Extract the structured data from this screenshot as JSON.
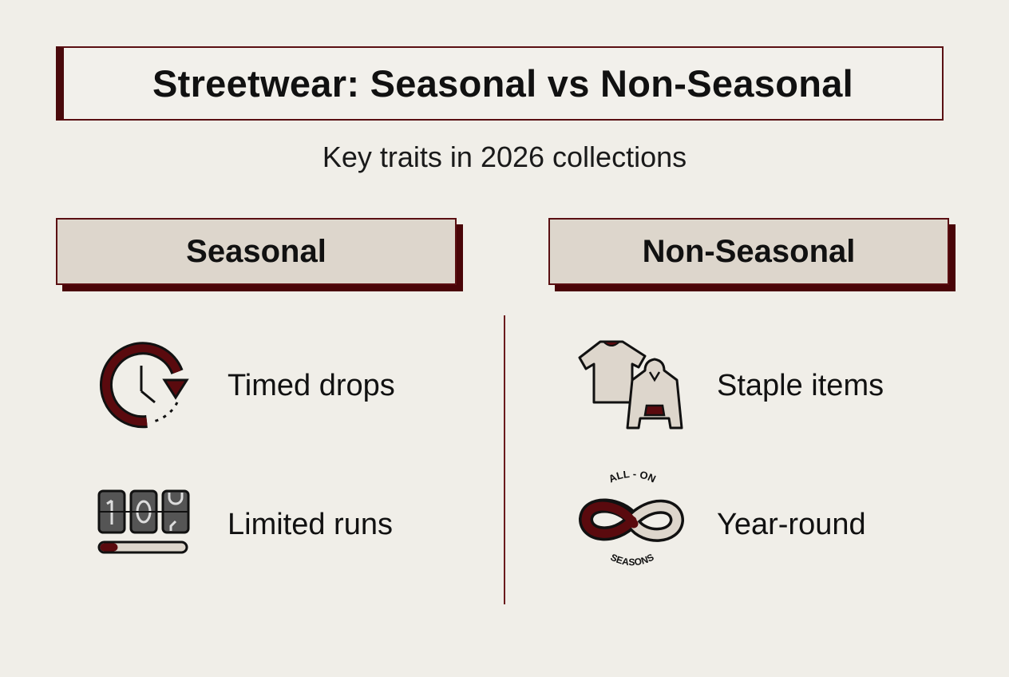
{
  "title": "Streetwear: Seasonal vs Non-Seasonal",
  "subtitle": "Key traits in 2026 collections",
  "colors": {
    "accent": "#5a0a0e",
    "background": "#f0eee8",
    "header_fill": "#ddd6cc"
  },
  "columns": [
    {
      "heading": "Seasonal",
      "items": [
        {
          "label": "Timed drops",
          "icon": "clock-rotate-icon"
        },
        {
          "label": "Limited runs",
          "icon": "flip-counter-icon",
          "counter_digits": [
            "1",
            "0",
            "0"
          ],
          "progress": 0.2
        }
      ]
    },
    {
      "heading": "Non-Seasonal",
      "items": [
        {
          "label": "Staple items",
          "icon": "tshirt-hoodie-icon"
        },
        {
          "label": "Year-round",
          "icon": "infinity-icon",
          "badge_top": "ALL - ON",
          "badge_bottom": "SEASONS"
        }
      ]
    }
  ]
}
